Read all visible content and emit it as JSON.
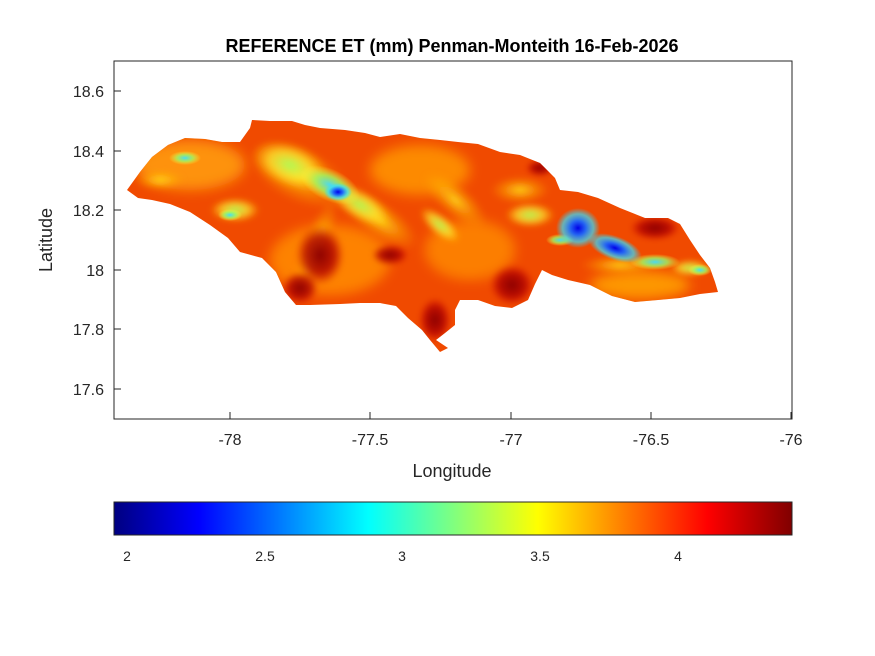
{
  "chart_data": {
    "type": "heatmap",
    "title": "REFERENCE ET (mm) Penman-Monteith 16-Feb-2026",
    "xlabel": "Longitude",
    "ylabel": "Latitude",
    "xlim": [
      -78.42,
      -76
    ],
    "ylim": [
      17.5,
      18.7
    ],
    "xticks": [
      -78,
      -77.5,
      -77,
      -76.5,
      -76
    ],
    "xtick_labels": [
      "-78",
      "-77.5",
      "-77",
      "-76.5",
      "-76"
    ],
    "yticks": [
      17.6,
      17.8,
      18,
      18.2,
      18.4,
      18.6
    ],
    "ytick_labels": [
      "17.6",
      "17.8",
      "18",
      "18.2",
      "18.4",
      "18.6"
    ],
    "grid": false,
    "colormap": "jet",
    "colorbar": {
      "location": "south",
      "range": [
        1.95,
        4.45
      ],
      "ticks": [
        2,
        2.5,
        3,
        3.5,
        4
      ],
      "tick_labels": [
        "2",
        "2.5",
        "3",
        "3.5",
        "4"
      ]
    },
    "region": "Jamaica",
    "low_value_areas": [
      {
        "lon": -77.62,
        "lat": 18.26,
        "value": 2.7
      },
      {
        "lon": -77.74,
        "lat": 18.31,
        "value": 3.0
      },
      {
        "lon": -76.77,
        "lat": 18.16,
        "value": 2.2
      },
      {
        "lon": -76.66,
        "lat": 18.06,
        "value": 2.3
      },
      {
        "lon": -76.55,
        "lat": 18.0,
        "value": 3.0
      },
      {
        "lon": -78.19,
        "lat": 18.36,
        "value": 3.2
      },
      {
        "lon": -78.05,
        "lat": 18.18,
        "value": 3.1
      },
      {
        "lon": -77.38,
        "lat": 18.33,
        "value": 3.3
      },
      {
        "lon": -77.15,
        "lat": 18.22,
        "value": 3.4
      }
    ],
    "high_value_areas": [
      {
        "lon": -77.72,
        "lat": 18.05,
        "value": 4.35
      },
      {
        "lon": -77.82,
        "lat": 17.93,
        "value": 4.3
      },
      {
        "lon": -77.25,
        "lat": 17.82,
        "value": 4.4
      },
      {
        "lon": -76.92,
        "lat": 17.94,
        "value": 4.4
      },
      {
        "lon": -76.45,
        "lat": 18.14,
        "value": 4.4
      },
      {
        "lon": -77.45,
        "lat": 18.05,
        "value": 4.2
      }
    ]
  }
}
